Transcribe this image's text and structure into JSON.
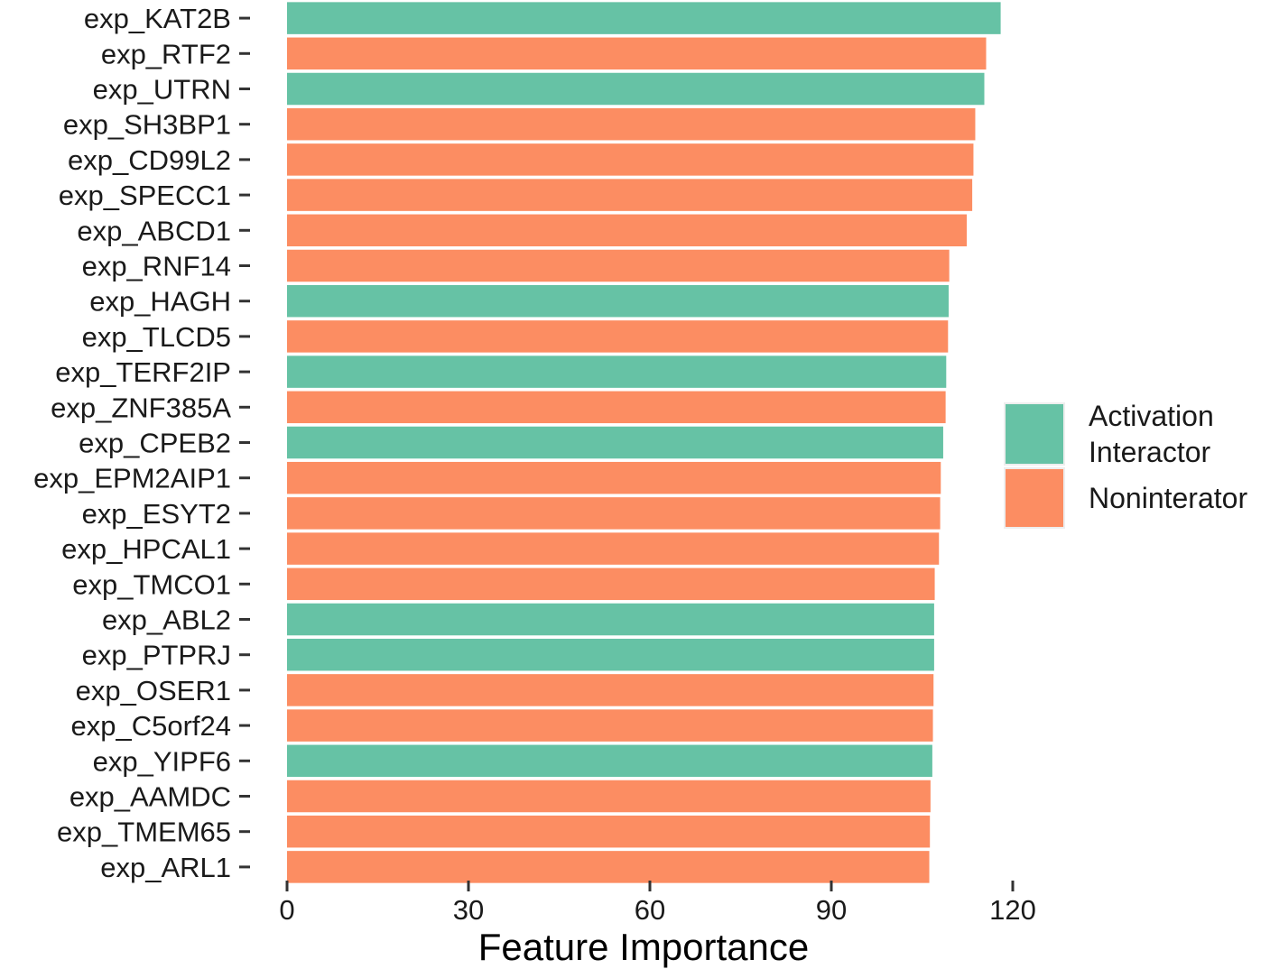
{
  "chart_data": {
    "type": "bar",
    "orientation": "horizontal",
    "xlabel": "Feature Importance",
    "ylabel": "",
    "xlim": [
      0,
      120
    ],
    "xticks": [
      0,
      30,
      60,
      90,
      120
    ],
    "grid": false,
    "legend_position": "right",
    "colors": {
      "Activation Interactor": "#66c2a5",
      "Noninterator": "#fc8d62"
    },
    "legend": [
      {
        "key": "Activation Interactor",
        "lines": [
          "Activation",
          "Interactor"
        ]
      },
      {
        "key": "Noninterator",
        "lines": [
          "Noninterator"
        ]
      }
    ],
    "categories": [
      "exp_KAT2B",
      "exp_RTF2",
      "exp_UTRN",
      "exp_SH3BP1",
      "exp_CD99L2",
      "exp_SPECC1",
      "exp_ABCD1",
      "exp_RNF14",
      "exp_HAGH",
      "exp_TLCD5",
      "exp_TERF2IP",
      "exp_ZNF385A",
      "exp_CPEB2",
      "exp_EPM2AIP1",
      "exp_ESYT2",
      "exp_HPCAL1",
      "exp_TMCO1",
      "exp_ABL2",
      "exp_PTPRJ",
      "exp_OSER1",
      "exp_C5orf24",
      "exp_YIPF6",
      "exp_AAMDC",
      "exp_TMEM65",
      "exp_ARL1"
    ],
    "values": [
      118.0,
      115.6,
      115.3,
      113.8,
      113.5,
      113.3,
      112.4,
      109.5,
      109.4,
      109.3,
      109.0,
      108.9,
      108.5,
      108.1,
      108.0,
      107.8,
      107.1,
      107.0,
      107.0,
      106.9,
      106.8,
      106.7,
      106.4,
      106.3,
      106.2
    ],
    "groups": [
      "Activation Interactor",
      "Noninterator",
      "Activation Interactor",
      "Noninterator",
      "Noninterator",
      "Noninterator",
      "Noninterator",
      "Noninterator",
      "Activation Interactor",
      "Noninterator",
      "Activation Interactor",
      "Noninterator",
      "Activation Interactor",
      "Noninterator",
      "Noninterator",
      "Noninterator",
      "Noninterator",
      "Activation Interactor",
      "Activation Interactor",
      "Noninterator",
      "Noninterator",
      "Activation Interactor",
      "Noninterator",
      "Noninterator",
      "Noninterator"
    ]
  }
}
